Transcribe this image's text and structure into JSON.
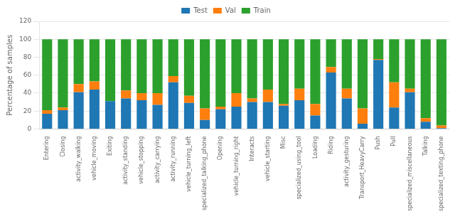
{
  "chart_data": {
    "type": "bar",
    "stacked": true,
    "ylabel": "Percentage of samples",
    "categories": [
      "Entering",
      "Closing",
      "activity_walking",
      "vehicle_moving",
      "Exiting",
      "activity_standing",
      "vehicle_stopping",
      "activity_carrying",
      "activity_running",
      "vehicle_turning_left",
      "specialized_talking_phone",
      "Opening",
      "vehicle_turning_right",
      "Interacts",
      "vehicle_starting",
      "Misc",
      "specialized_using_tool",
      "Loading",
      "Riding",
      "activity_gesturing",
      "Transport_HeavyCarry",
      "Push",
      "Pull",
      "specialized_miscellaneous",
      "Talking",
      "specialized_texting_phone"
    ],
    "series": [
      {
        "name": "Test",
        "color": "#1f77b4",
        "values": [
          17,
          21,
          41,
          44,
          31,
          34,
          32,
          27,
          52,
          29,
          10,
          22,
          25,
          30,
          30,
          26,
          32,
          15,
          63,
          34,
          6,
          77,
          24,
          41,
          8,
          1
        ]
      },
      {
        "name": "Val",
        "color": "#ff7f0e",
        "values": [
          4,
          3,
          9,
          9,
          0,
          9,
          8,
          13,
          7,
          8,
          13,
          3,
          15,
          4,
          14,
          2,
          13,
          13,
          6,
          11,
          17,
          1,
          28,
          4,
          4,
          3
        ]
      },
      {
        "name": "Train",
        "color": "#2ca02c",
        "values": [
          79,
          76,
          50,
          47,
          69,
          57,
          60,
          60,
          41,
          63,
          77,
          75,
          60,
          66,
          56,
          72,
          55,
          72,
          31,
          55,
          77,
          22,
          48,
          55,
          88,
          96
        ]
      }
    ],
    "ylim": [
      0,
      120
    ],
    "yticks": [
      0,
      20,
      40,
      60,
      80,
      100,
      120
    ],
    "grid": true,
    "legend": "top"
  }
}
